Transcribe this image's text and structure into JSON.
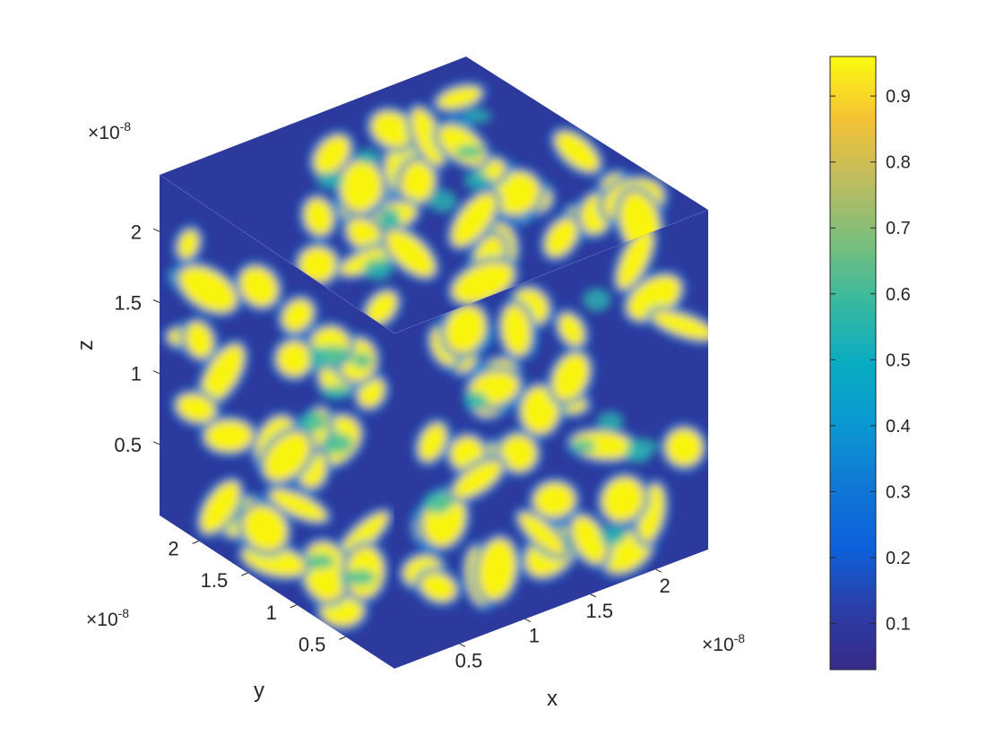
{
  "chart_data": {
    "type": "heatmap",
    "title": "",
    "x_axis": {
      "label": "x",
      "ticks": [
        "0.5",
        "1",
        "1.5",
        "2"
      ],
      "tick_values": [
        0.5,
        1,
        1.5,
        2
      ],
      "range": [
        0,
        2.4
      ],
      "multiplier": "×10",
      "exponent": "-8"
    },
    "y_axis": {
      "label": "y",
      "ticks": [
        "0.5",
        "1",
        "1.5",
        "2"
      ],
      "tick_values": [
        0.5,
        1,
        1.5,
        2
      ],
      "range": [
        0,
        2.4
      ],
      "multiplier": "×10",
      "exponent": "-8"
    },
    "z_axis": {
      "label": "z",
      "ticks": [
        "0.5",
        "1",
        "1.5",
        "2"
      ],
      "tick_values": [
        0.5,
        1,
        1.5,
        2
      ],
      "range": [
        0,
        2.4
      ],
      "multiplier": "×10",
      "exponent": "-8"
    },
    "colorbar": {
      "ticks": [
        "0.1",
        "0.2",
        "0.3",
        "0.4",
        "0.5",
        "0.6",
        "0.7",
        "0.8",
        "0.9"
      ],
      "tick_values": [
        0.1,
        0.2,
        0.3,
        0.4,
        0.5,
        0.6,
        0.7,
        0.8,
        0.9
      ],
      "range": [
        0.03,
        0.96
      ],
      "colormap": "parula"
    },
    "colors": {
      "low": "#352a87",
      "mid": "#0f9bd6",
      "high": "#f9fb0e"
    }
  }
}
